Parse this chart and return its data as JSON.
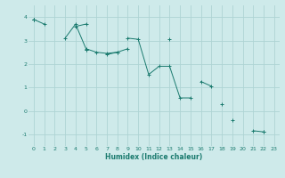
{
  "xlabel": "Humidex (Indice chaleur)",
  "ylabel": "",
  "bg_color": "#ceeaea",
  "line_color": "#1a7a6e",
  "grid_color": "#aed4d4",
  "xlim": [
    -0.5,
    23.5
  ],
  "ylim": [
    -1.5,
    4.5
  ],
  "yticks": [
    -1,
    0,
    1,
    2,
    3,
    4
  ],
  "xticks": [
    0,
    1,
    2,
    3,
    4,
    5,
    6,
    7,
    8,
    9,
    10,
    11,
    12,
    13,
    14,
    15,
    16,
    17,
    18,
    19,
    20,
    21,
    22,
    23
  ],
  "series": [
    [
      3.9,
      3.7,
      null,
      null,
      3.6,
      3.7,
      null,
      null,
      null,
      3.1,
      3.05,
      1.55,
      1.9,
      1.9,
      0.55,
      0.55,
      null,
      null,
      null,
      -0.4,
      null,
      -0.85,
      -0.9,
      null
    ],
    [
      3.9,
      null,
      null,
      3.1,
      3.7,
      2.65,
      2.5,
      2.45,
      2.5,
      2.65,
      null,
      null,
      null,
      3.05,
      null,
      null,
      null,
      null,
      null,
      null,
      null,
      null,
      null,
      null
    ],
    [
      3.9,
      null,
      null,
      null,
      null,
      2.6,
      null,
      2.4,
      2.5,
      null,
      null,
      null,
      null,
      null,
      null,
      null,
      1.25,
      1.05,
      null,
      null,
      null,
      null,
      null,
      null
    ],
    [
      3.9,
      null,
      null,
      null,
      null,
      2.6,
      null,
      null,
      null,
      null,
      null,
      null,
      null,
      null,
      null,
      null,
      null,
      null,
      0.3,
      null,
      null,
      null,
      -0.9,
      null
    ]
  ]
}
